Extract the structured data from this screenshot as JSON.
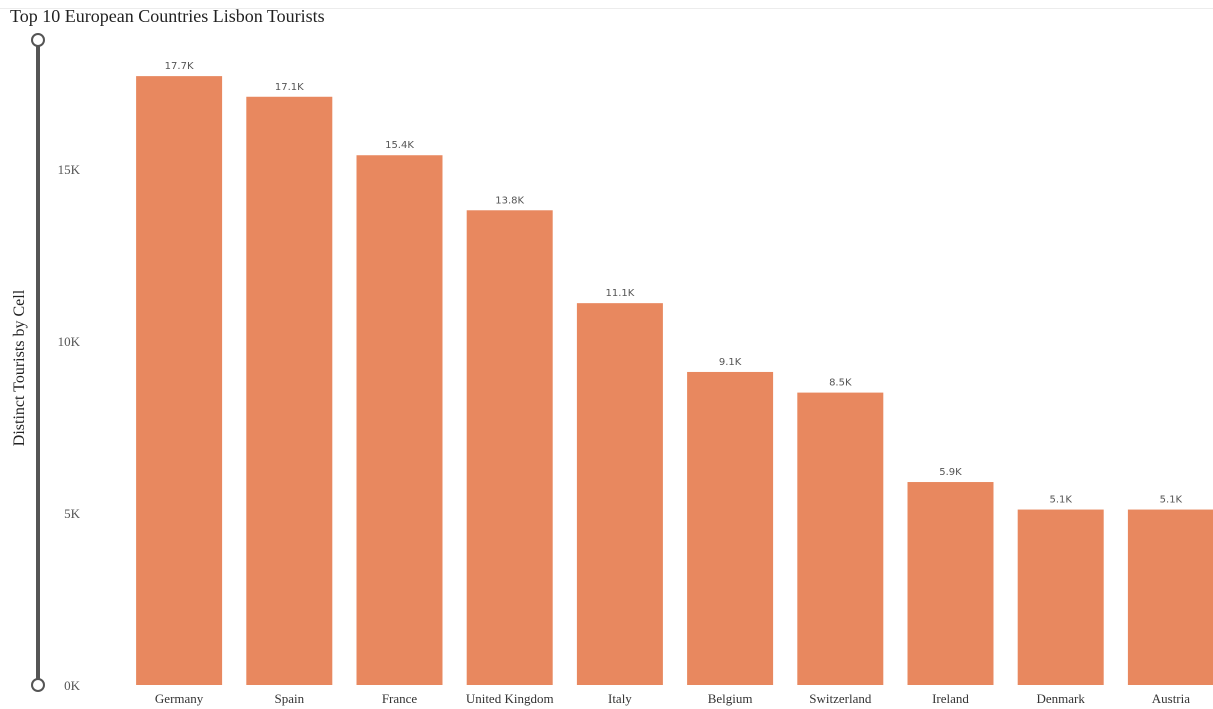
{
  "chart_data": {
    "type": "bar",
    "title": "Top 10 European Countries Lisbon Tourists",
    "xlabel": "",
    "ylabel": "Distinct Tourists by Cell",
    "categories": [
      "Germany",
      "Spain",
      "France",
      "United Kingdom",
      "Italy",
      "Belgium",
      "Switzerland",
      "Ireland",
      "Denmark",
      "Austria"
    ],
    "values": [
      17700,
      17100,
      15400,
      13800,
      11100,
      9100,
      8500,
      5900,
      5100,
      5100
    ],
    "data_labels": [
      "17.7K",
      "17.1K",
      "15.4K",
      "13.8K",
      "11.1K",
      "9.1K",
      "8.5K",
      "5.9K",
      "5.1K",
      "5.1K"
    ],
    "yticks": [
      0,
      5000,
      10000,
      15000
    ],
    "ytick_labels": [
      "0K",
      "5K",
      "10K",
      "15K"
    ],
    "ylim": [
      0,
      18000
    ],
    "grid": false,
    "bar_color": "#E8885F",
    "axis_slider_color": "#555555"
  }
}
